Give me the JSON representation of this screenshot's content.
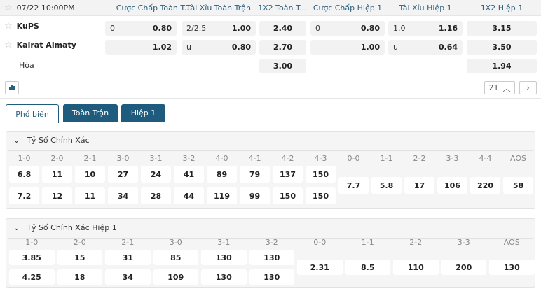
{
  "match": {
    "time": "07/22 10:00PM",
    "home": "KuPS",
    "away": "Kairat Almaty",
    "draw": "Hòa"
  },
  "columns": [
    "Cược Chấp Toàn T...",
    "Tài Xỉu Toàn Trận",
    "1X2 Toàn T...",
    "Cược Chấp Hiệp 1",
    "Tài Xỉu Hiệp 1",
    "1X2 Hiệp 1"
  ],
  "odds": {
    "ah_ft": {
      "home_line": "0",
      "home": "0.80",
      "away_line": "",
      "away": "1.02"
    },
    "ou_ft": {
      "over_line": "2/2.5",
      "over": "1.00",
      "under_line": "u",
      "under": "0.80"
    },
    "x12_ft": {
      "home": "2.40",
      "away": "2.70",
      "draw": "3.00"
    },
    "ah_h1": {
      "home_line": "0",
      "home": "0.80",
      "away_line": "",
      "away": "1.00"
    },
    "ou_h1": {
      "over_line": "1.0",
      "over": "1.16",
      "under_line": "u",
      "under": "0.64"
    },
    "x12_h1": {
      "home": "3.15",
      "away": "3.50",
      "draw": "1.94"
    }
  },
  "more_count": "21",
  "tabs": [
    "Phổ biến",
    "Toàn Trận",
    "Hiệp 1"
  ],
  "active_tab": "Phổ biến",
  "accent": "#1e5b7c",
  "correct_score": {
    "title": "Tỷ Số Chính Xác",
    "scores": [
      "1-0",
      "2-0",
      "2-1",
      "3-0",
      "3-1",
      "3-2",
      "4-0",
      "4-1",
      "4-2",
      "4-3",
      "0-0",
      "1-1",
      "2-2",
      "3-3",
      "4-4",
      "AOS"
    ],
    "home": [
      "6.8",
      "11",
      "10",
      "27",
      "24",
      "41",
      "89",
      "79",
      "137",
      "150"
    ],
    "away": [
      "7.2",
      "12",
      "11",
      "34",
      "28",
      "44",
      "119",
      "99",
      "150",
      "150"
    ],
    "draw": [
      "7.7",
      "5.8",
      "17",
      "106",
      "220",
      "58"
    ]
  },
  "correct_score_h1": {
    "title": "Tỷ Số Chính Xác Hiệp 1",
    "scores": [
      "1-0",
      "2-0",
      "2-1",
      "3-0",
      "3-1",
      "3-2",
      "0-0",
      "1-1",
      "2-2",
      "3-3",
      "AOS"
    ],
    "home": [
      "3.85",
      "15",
      "31",
      "85",
      "130",
      "130"
    ],
    "away": [
      "4.25",
      "18",
      "34",
      "109",
      "130",
      "130"
    ],
    "draw": [
      "2.31",
      "8.5",
      "110",
      "200",
      "130"
    ]
  }
}
